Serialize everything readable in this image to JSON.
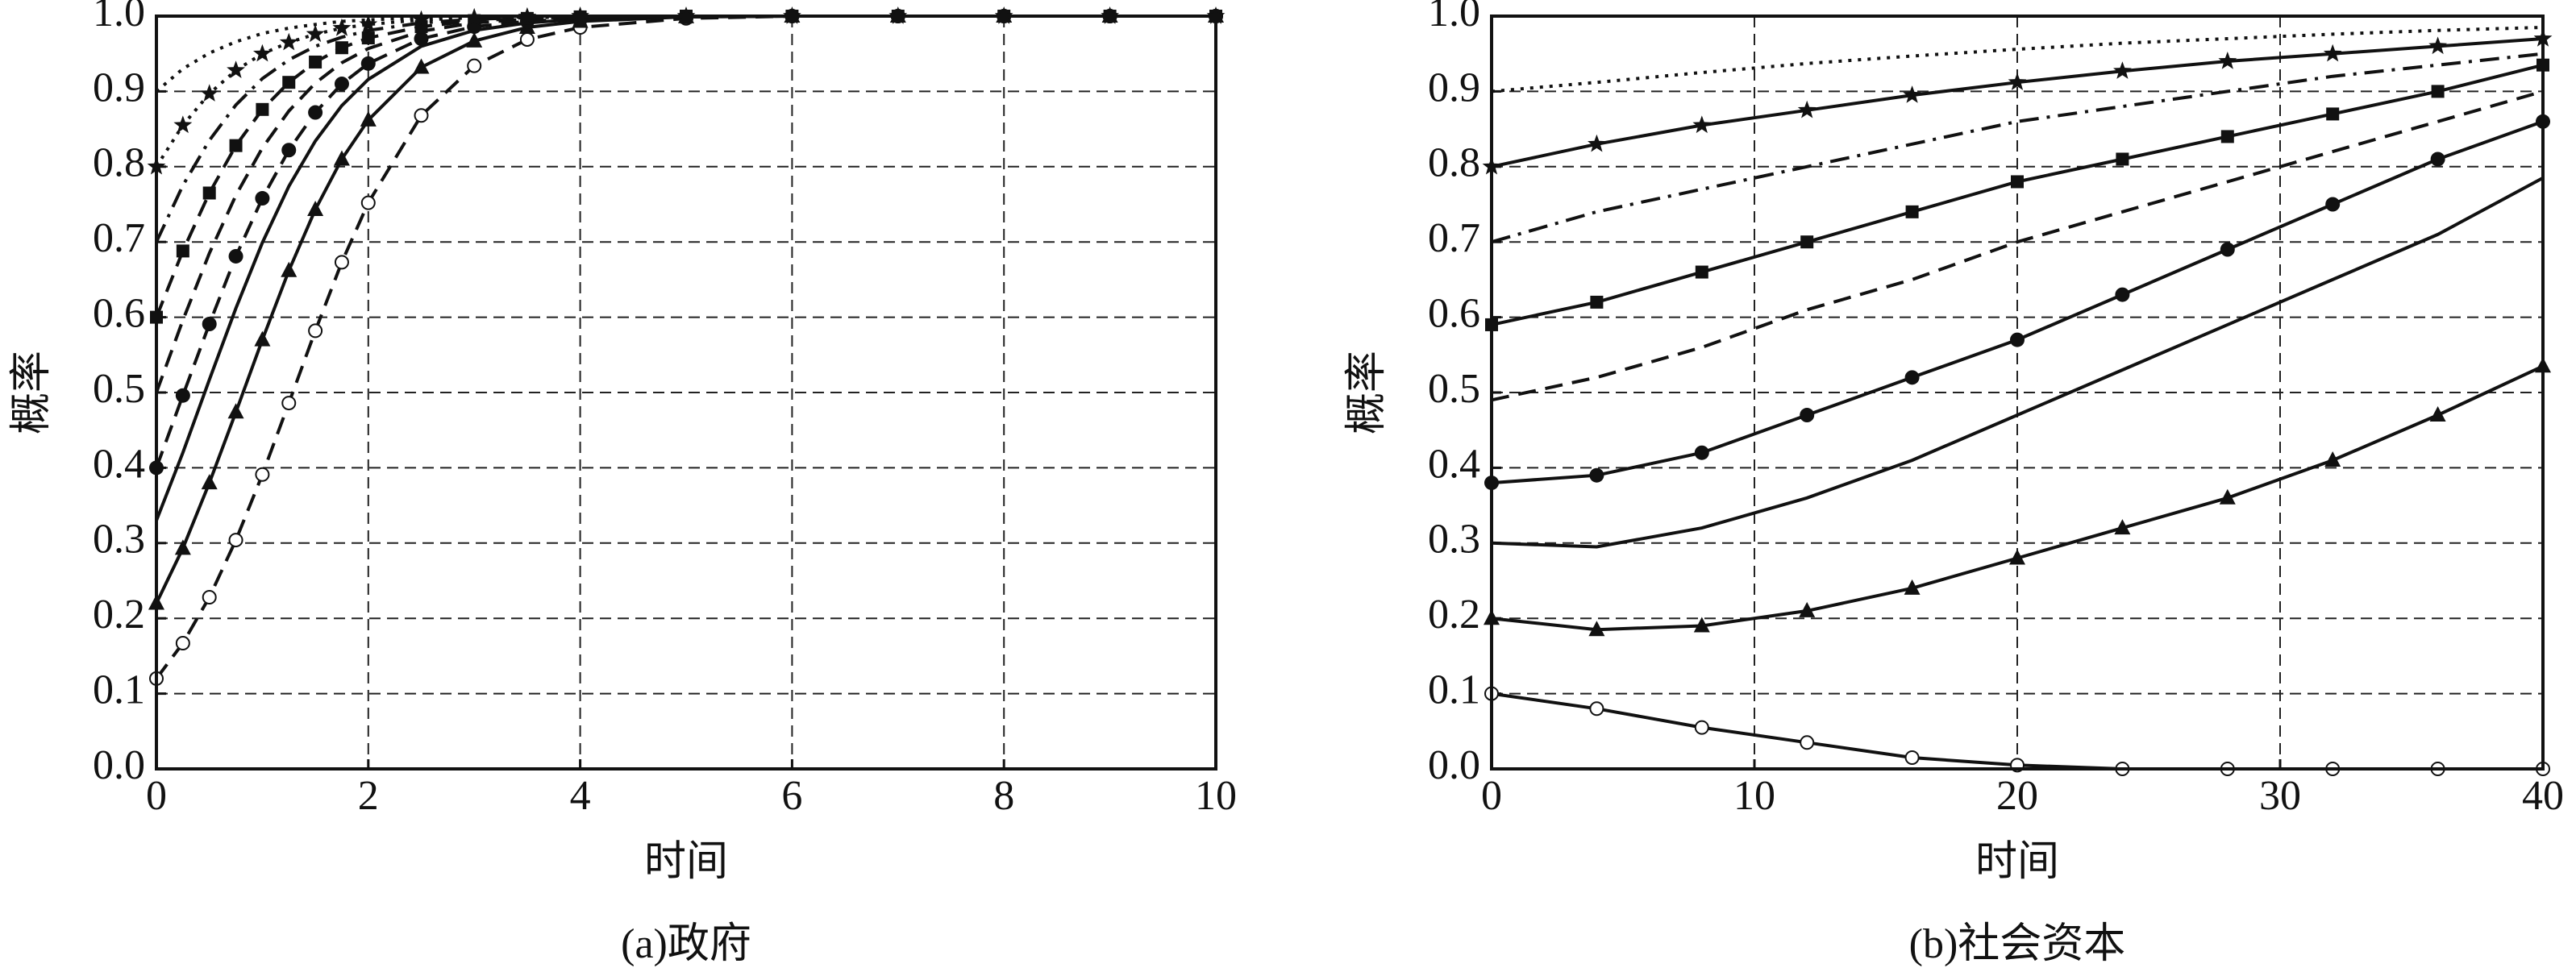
{
  "chart_data": [
    {
      "type": "line",
      "x_label": "时间",
      "y_label": "概率",
      "caption": "(a)政府",
      "x": [
        0,
        0.25,
        0.5,
        0.75,
        1,
        1.25,
        1.5,
        1.75,
        2,
        2.5,
        3,
        3.5,
        4,
        5,
        6,
        7,
        8,
        9,
        10
      ],
      "xlim": [
        0,
        10
      ],
      "xticks": [
        0,
        2,
        4,
        6,
        8,
        10
      ],
      "ylim": [
        0,
        1
      ],
      "yticks": [
        {
          "value": 0,
          "label": "0.0"
        },
        0.1,
        0.2,
        0.3,
        0.4,
        0.5,
        0.6,
        0.7,
        0.8,
        0.9,
        {
          "value": 1,
          "label": "1.0"
        }
      ],
      "grid": true,
      "series": [
        {
          "color": "#111111",
          "dash": "dashed",
          "marker": "open-circle",
          "values": [
            0.12,
            0.167,
            0.228,
            0.304,
            0.391,
            0.486,
            0.582,
            0.673,
            0.752,
            0.868,
            0.934,
            0.969,
            0.985,
            0.997,
            1,
            1,
            1,
            1,
            1
          ]
        },
        {
          "color": "#111111",
          "dash": "solid",
          "marker": "triangle",
          "values": [
            0.22,
            0.293,
            0.38,
            0.474,
            0.57,
            0.662,
            0.743,
            0.81,
            0.862,
            0.932,
            0.967,
            0.985,
            0.993,
            0.999,
            1,
            1,
            1,
            1,
            1
          ]
        },
        {
          "color": "#111111",
          "dash": "solid",
          "marker": "none",
          "values": [
            0.33,
            0.42,
            0.517,
            0.612,
            0.699,
            0.774,
            0.834,
            0.881,
            0.916,
            0.96,
            0.981,
            0.991,
            0.996,
            0.999,
            1,
            1,
            1,
            1,
            1
          ]
        },
        {
          "color": "#111111",
          "dash": "dashed",
          "marker": "circle",
          "values": [
            0.4,
            0.496,
            0.591,
            0.681,
            0.758,
            0.822,
            0.872,
            0.91,
            0.937,
            0.97,
            0.986,
            0.993,
            0.997,
            0.999,
            1,
            1,
            1,
            1,
            1
          ]
        },
        {
          "color": "#111111",
          "dash": "dashed",
          "marker": "none",
          "values": [
            0.5,
            0.596,
            0.685,
            0.762,
            0.825,
            0.874,
            0.911,
            0.938,
            0.957,
            0.98,
            0.991,
            0.996,
            0.998,
            1,
            1,
            1,
            1,
            1,
            1
          ]
        },
        {
          "color": "#111111",
          "dash": "dashed",
          "marker": "square",
          "values": [
            0.6,
            0.688,
            0.765,
            0.828,
            0.876,
            0.912,
            0.939,
            0.958,
            0.971,
            0.986,
            0.994,
            0.997,
            0.999,
            1,
            1,
            1,
            1,
            1,
            1
          ]
        },
        {
          "color": "#111111",
          "dash": "dashdot",
          "marker": "none",
          "values": [
            0.7,
            0.775,
            0.835,
            0.882,
            0.917,
            0.942,
            0.96,
            0.972,
            0.981,
            0.991,
            0.996,
            0.998,
            0.999,
            1,
            1,
            1,
            1,
            1,
            1
          ]
        },
        {
          "color": "#111111",
          "dash": "dotted",
          "marker": "star",
          "values": [
            0.8,
            0.855,
            0.897,
            0.928,
            0.95,
            0.965,
            0.976,
            0.984,
            0.989,
            0.995,
            0.998,
            0.999,
            1,
            1,
            1,
            1,
            1,
            1,
            1
          ]
        },
        {
          "color": "#111111",
          "dash": "dotted",
          "marker": "none",
          "values": [
            0.9,
            0.93,
            0.951,
            0.966,
            0.977,
            0.984,
            0.989,
            0.993,
            0.995,
            0.998,
            0.999,
            1,
            1,
            1,
            1,
            1,
            1,
            1,
            1
          ]
        }
      ]
    },
    {
      "type": "line",
      "x_label": "时间",
      "y_label": "概率",
      "caption": "(b)社会资本",
      "x": [
        0,
        4,
        8,
        12,
        16,
        20,
        24,
        28,
        32,
        36,
        40
      ],
      "xlim": [
        0,
        40
      ],
      "xticks": [
        0,
        10,
        20,
        30,
        40
      ],
      "ylim": [
        0,
        1
      ],
      "yticks": [
        {
          "value": 0,
          "label": "0.0"
        },
        0.1,
        0.2,
        0.3,
        0.4,
        0.5,
        0.6,
        0.7,
        0.8,
        0.9,
        {
          "value": 1,
          "label": "1.0"
        }
      ],
      "grid": true,
      "series": [
        {
          "color": "#111111",
          "dash": "solid",
          "marker": "open-circle",
          "values": [
            0.1,
            0.08,
            0.055,
            0.035,
            0.015,
            0.005,
            0,
            0,
            0,
            0,
            0
          ]
        },
        {
          "color": "#111111",
          "dash": "solid",
          "marker": "triangle",
          "values": [
            0.2,
            0.185,
            0.19,
            0.21,
            0.24,
            0.28,
            0.32,
            0.36,
            0.41,
            0.47,
            0.535
          ]
        },
        {
          "color": "#111111",
          "dash": "solid",
          "marker": "none",
          "values": [
            0.3,
            0.295,
            0.32,
            0.36,
            0.41,
            0.47,
            0.53,
            0.59,
            0.65,
            0.71,
            0.785
          ]
        },
        {
          "color": "#111111",
          "dash": "solid",
          "marker": "circle",
          "values": [
            0.38,
            0.39,
            0.42,
            0.47,
            0.52,
            0.57,
            0.63,
            0.69,
            0.75,
            0.81,
            0.86
          ]
        },
        {
          "color": "#111111",
          "dash": "dashed",
          "marker": "none",
          "values": [
            0.49,
            0.52,
            0.56,
            0.61,
            0.65,
            0.7,
            0.74,
            0.78,
            0.82,
            0.86,
            0.9
          ]
        },
        {
          "color": "#111111",
          "dash": "solid",
          "marker": "square",
          "values": [
            0.59,
            0.62,
            0.66,
            0.7,
            0.74,
            0.78,
            0.81,
            0.84,
            0.87,
            0.9,
            0.935
          ]
        },
        {
          "color": "#111111",
          "dash": "dashdot",
          "marker": "none",
          "values": [
            0.7,
            0.74,
            0.77,
            0.8,
            0.83,
            0.86,
            0.88,
            0.9,
            0.92,
            0.935,
            0.95
          ]
        },
        {
          "color": "#111111",
          "dash": "solid",
          "marker": "star",
          "values": [
            0.8,
            0.83,
            0.855,
            0.875,
            0.895,
            0.912,
            0.927,
            0.94,
            0.95,
            0.96,
            0.97
          ]
        },
        {
          "color": "#111111",
          "dash": "dotted",
          "marker": "none",
          "values": [
            0.9,
            0.912,
            0.925,
            0.937,
            0.947,
            0.956,
            0.964,
            0.97,
            0.976,
            0.981,
            0.985
          ]
        }
      ]
    }
  ]
}
